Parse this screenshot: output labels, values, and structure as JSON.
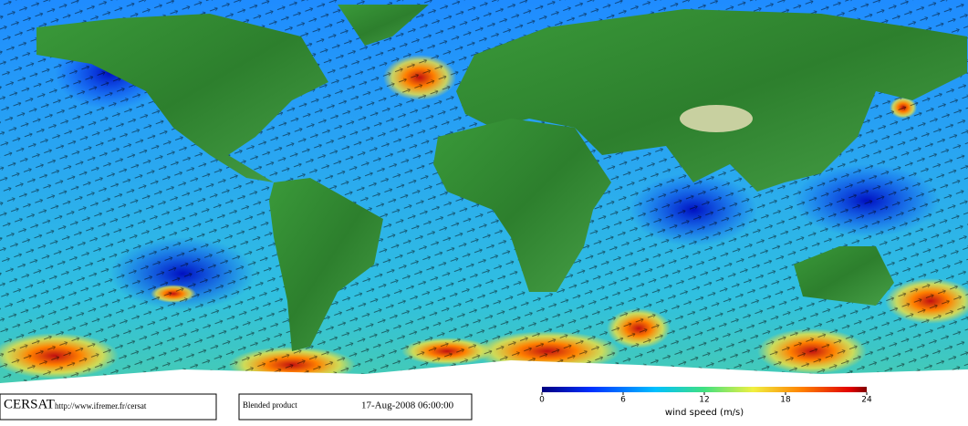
{
  "footer": {
    "logo": "CERSAT",
    "url": "http://www.ifremer.fr/cersat",
    "product": "Blended product",
    "datetime": "17-Aug-2008 06:00:00"
  },
  "colorbar": {
    "label": "wind speed (m/s)",
    "lim": [
      0,
      24
    ],
    "ticks": [
      0,
      6,
      12,
      18,
      24
    ]
  }
}
